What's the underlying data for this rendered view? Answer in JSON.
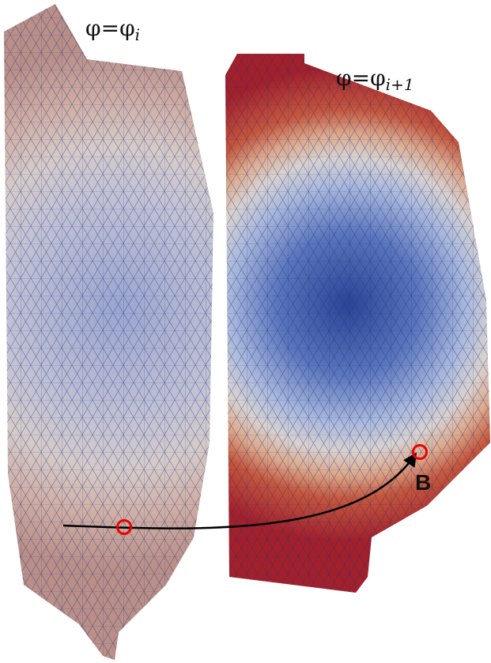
{
  "labels": [
    {
      "base": "φ=φ",
      "sub": "i"
    },
    {
      "base": "φ=φ",
      "sub": "i+1"
    }
  ],
  "point_label": "B"
}
